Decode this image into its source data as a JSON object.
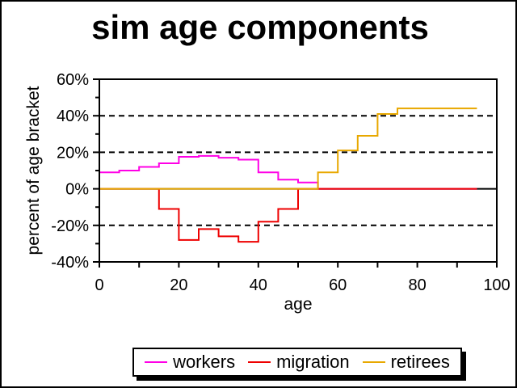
{
  "title": "sim age components",
  "chart_data": {
    "type": "line",
    "style": "step",
    "title": "sim age components",
    "xlabel": "age",
    "ylabel": "percent of age bracket",
    "xlim": [
      0,
      100
    ],
    "ylim": [
      -40,
      60
    ],
    "grid": "dashed-horizontal",
    "grid_values": [
      40,
      20,
      -20
    ],
    "zero_line": true,
    "legend_position": "bottom",
    "x_ticks": [
      {
        "v": 0,
        "label": "0"
      },
      {
        "v": 20,
        "label": "20"
      },
      {
        "v": 40,
        "label": "40"
      },
      {
        "v": 60,
        "label": "60"
      },
      {
        "v": 80,
        "label": "80"
      },
      {
        "v": 100,
        "label": "100"
      }
    ],
    "x_ticks_minor": [
      10,
      30,
      50,
      70,
      90
    ],
    "y_ticks": [
      {
        "v": 60,
        "label": "60%"
      },
      {
        "v": 40,
        "label": "40%"
      },
      {
        "v": 20,
        "label": "20%"
      },
      {
        "v": 0,
        "label": "0%"
      },
      {
        "v": -20,
        "label": "-20%"
      },
      {
        "v": -40,
        "label": "-40%"
      }
    ],
    "y_ticks_minor": [
      50,
      30,
      10,
      -10,
      -30
    ],
    "bracket_edges": [
      0,
      5,
      10,
      15,
      20,
      25,
      30,
      35,
      40,
      45,
      50,
      55,
      60,
      65,
      70,
      75,
      80,
      85,
      90,
      95
    ],
    "series": [
      {
        "name": "workers",
        "color": "#ff00e6",
        "values": [
          9,
          10,
          12,
          14,
          17.5,
          18,
          17,
          16,
          9,
          5,
          3.5,
          0,
          0,
          0,
          0,
          0,
          0,
          0,
          0
        ]
      },
      {
        "name": "migration",
        "color": "#ee0000",
        "values": [
          0,
          0,
          0,
          -11,
          -28,
          -22,
          -26,
          -29,
          -18,
          -11,
          0,
          0,
          0,
          0,
          0,
          0,
          0,
          0,
          0
        ]
      },
      {
        "name": "retirees",
        "color": "#e8a800",
        "values": [
          0,
          0,
          0,
          0,
          0,
          0,
          0,
          0,
          0,
          0,
          0,
          9,
          21,
          29,
          41,
          44,
          44,
          44,
          44
        ]
      }
    ]
  },
  "colors": {
    "axis": "#000000",
    "background": "#ffffff"
  }
}
